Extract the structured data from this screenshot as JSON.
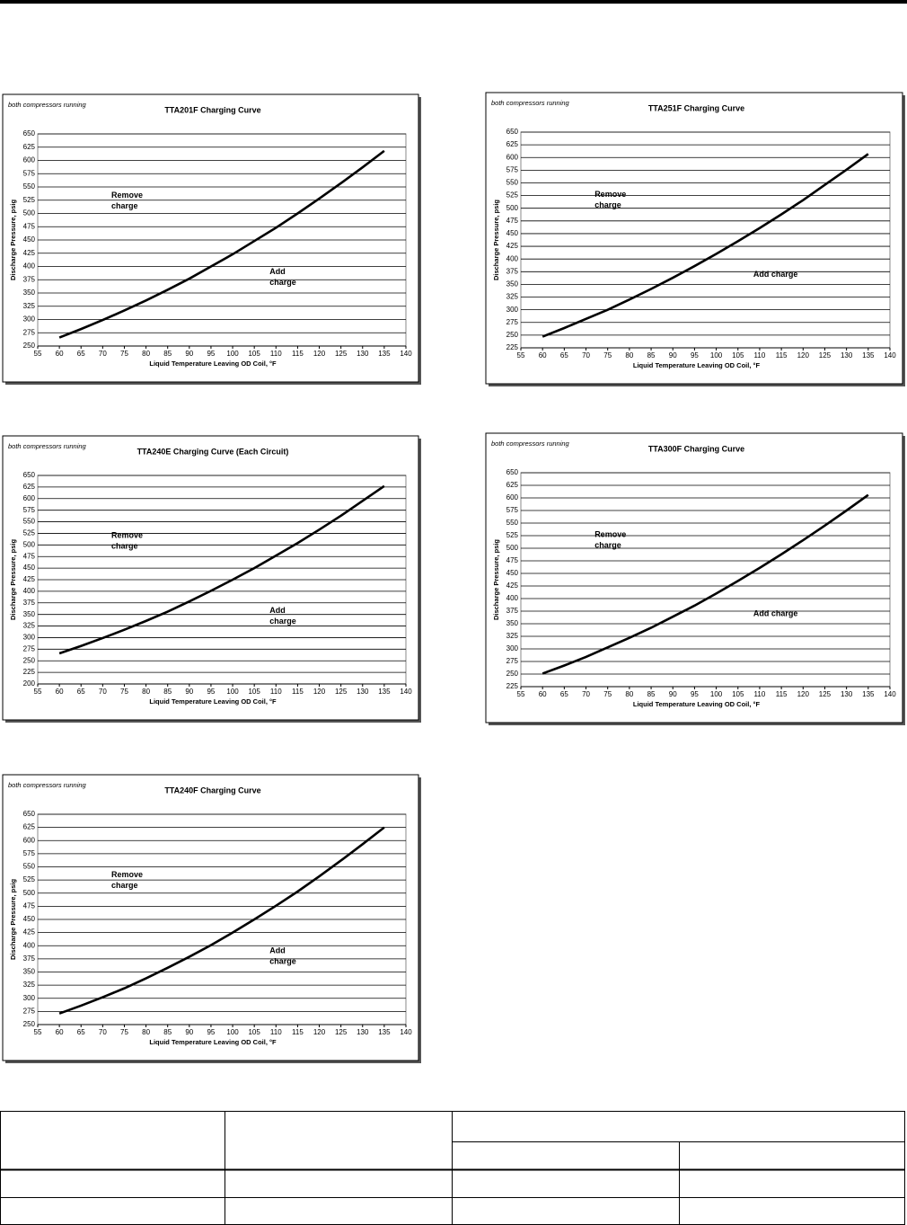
{
  "chart_data": [
    {
      "type": "line",
      "note": "both compressors running",
      "title": "TTA201F Charging Curve",
      "xlabel": "Liquid Temperature Leaving OD Coil, °F",
      "ylabel": "Discharge Pressure, psig",
      "annotations": [
        [
          "Remove",
          "charge"
        ],
        [
          "Add",
          "charge"
        ]
      ],
      "color": "#000000",
      "x": [
        60,
        65,
        70,
        75,
        80,
        85,
        90,
        95,
        100,
        105,
        110,
        115,
        120,
        125,
        130,
        135
      ],
      "values": [
        266,
        282,
        299,
        317,
        336,
        356,
        377,
        400,
        423,
        448,
        473,
        500,
        528,
        557,
        587,
        618
      ],
      "xlim": [
        55,
        140
      ],
      "xticks": [
        55,
        60,
        65,
        70,
        75,
        80,
        85,
        90,
        95,
        100,
        105,
        110,
        115,
        120,
        125,
        130,
        135,
        140
      ],
      "ylim": [
        250,
        650
      ],
      "yticks": [
        250,
        275,
        300,
        325,
        350,
        375,
        400,
        425,
        450,
        475,
        500,
        525,
        550,
        575,
        600,
        625,
        650
      ],
      "grid": true
    },
    {
      "type": "line",
      "note": "both compressors running",
      "title": "TTA251F Charging Curve",
      "xlabel": "Liquid Temperature Leaving OD Coil, °F",
      "ylabel": "Discharge Pressure, psig",
      "annotations": [
        [
          "Remove",
          "charge"
        ],
        [
          "Add charge"
        ]
      ],
      "color": "#000000",
      "x": [
        60,
        65,
        70,
        75,
        80,
        85,
        90,
        95,
        100,
        105,
        110,
        115,
        120,
        125,
        130,
        135
      ],
      "values": [
        247,
        264,
        282,
        300,
        320,
        341,
        363,
        386,
        410,
        435,
        461,
        488,
        516,
        546,
        576,
        607
      ],
      "xlim": [
        55,
        140
      ],
      "xticks": [
        55,
        60,
        65,
        70,
        75,
        80,
        85,
        90,
        95,
        100,
        105,
        110,
        115,
        120,
        125,
        130,
        135,
        140
      ],
      "ylim": [
        225,
        650
      ],
      "yticks": [
        225,
        250,
        275,
        300,
        325,
        350,
        375,
        400,
        425,
        450,
        475,
        500,
        525,
        550,
        575,
        600,
        625,
        650
      ],
      "grid": true
    },
    {
      "type": "line",
      "note": "both compressors running",
      "title": "TTA240E Charging Curve (Each Circuit)",
      "xlabel": "Liquid Temperature Leaving OD Coil, °F",
      "ylabel": "Discharge Pressure, psig",
      "annotations": [
        [
          "Remove",
          "charge"
        ],
        [
          "Add",
          "charge"
        ]
      ],
      "color": "#000000",
      "x": [
        60,
        65,
        70,
        75,
        80,
        85,
        90,
        95,
        100,
        105,
        110,
        115,
        120,
        125,
        130,
        135
      ],
      "values": [
        266,
        282,
        299,
        317,
        336,
        356,
        378,
        401,
        425,
        450,
        477,
        504,
        533,
        563,
        595,
        627
      ],
      "xlim": [
        55,
        140
      ],
      "xticks": [
        55,
        60,
        65,
        70,
        75,
        80,
        85,
        90,
        95,
        100,
        105,
        110,
        115,
        120,
        125,
        130,
        135,
        140
      ],
      "ylim": [
        200,
        650
      ],
      "yticks": [
        200,
        225,
        250,
        275,
        300,
        325,
        350,
        375,
        400,
        425,
        450,
        475,
        500,
        525,
        550,
        575,
        600,
        625,
        650
      ],
      "grid": true
    },
    {
      "type": "line",
      "note": "both compressors running",
      "title": "TTA300F Charging Curve",
      "xlabel": "Liquid Temperature Leaving OD Coil, °F",
      "ylabel": "Discharge Pressure, psig",
      "annotations": [
        [
          "Remove",
          "charge"
        ],
        [
          "Add charge"
        ]
      ],
      "color": "#000000",
      "x": [
        60,
        65,
        70,
        75,
        80,
        85,
        90,
        95,
        100,
        105,
        110,
        115,
        120,
        125,
        130,
        135
      ],
      "values": [
        251,
        267,
        284,
        303,
        322,
        342,
        364,
        386,
        410,
        435,
        461,
        488,
        516,
        545,
        575,
        606
      ],
      "xlim": [
        55,
        140
      ],
      "xticks": [
        55,
        60,
        65,
        70,
        75,
        80,
        85,
        90,
        95,
        100,
        105,
        110,
        115,
        120,
        125,
        130,
        135,
        140
      ],
      "ylim": [
        225,
        650
      ],
      "yticks": [
        225,
        250,
        275,
        300,
        325,
        350,
        375,
        400,
        425,
        450,
        475,
        500,
        525,
        550,
        575,
        600,
        625,
        650
      ],
      "grid": true
    },
    {
      "type": "line",
      "note": "both compressors running",
      "title": "TTA240F Charging Curve",
      "xlabel": "Liquid Temperature Leaving OD Coil, °F",
      "ylabel": "Discharge Pressure, psig",
      "annotations": [
        [
          "Remove",
          "charge"
        ],
        [
          "Add",
          "charge"
        ]
      ],
      "color": "#000000",
      "x": [
        60,
        65,
        70,
        75,
        80,
        85,
        90,
        95,
        100,
        105,
        110,
        115,
        120,
        125,
        130,
        135
      ],
      "values": [
        271,
        286,
        302,
        319,
        338,
        358,
        379,
        401,
        425,
        450,
        476,
        503,
        532,
        562,
        593,
        625
      ],
      "xlim": [
        55,
        140
      ],
      "xticks": [
        55,
        60,
        65,
        70,
        75,
        80,
        85,
        90,
        95,
        100,
        105,
        110,
        115,
        120,
        125,
        130,
        135,
        140
      ],
      "ylim": [
        250,
        650
      ],
      "yticks": [
        250,
        275,
        300,
        325,
        350,
        375,
        400,
        425,
        450,
        475,
        500,
        525,
        550,
        575,
        600,
        625,
        650
      ],
      "grid": true
    }
  ]
}
